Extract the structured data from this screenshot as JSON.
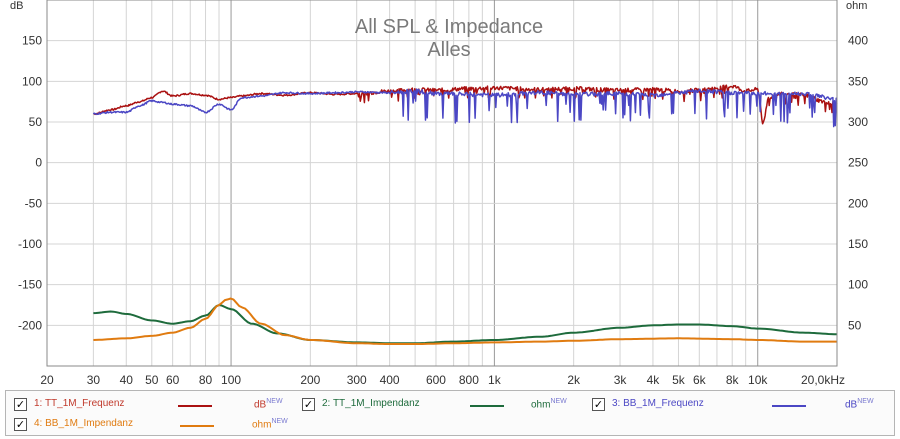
{
  "chart_data": {
    "type": "line",
    "title": "All SPL & Impedance",
    "subtitle": "Alles",
    "x_scale": "log",
    "xlim": [
      20,
      20000
    ],
    "x_ticks": [
      20,
      30,
      40,
      50,
      60,
      80,
      100,
      200,
      300,
      400,
      600,
      800,
      1000,
      2000,
      3000,
      4000,
      5000,
      6000,
      8000,
      10000,
      20000
    ],
    "x_tick_labels": [
      "20",
      "30",
      "40",
      "50",
      "60",
      "80",
      "100",
      "200",
      "300",
      "400",
      "600",
      "800",
      "1k",
      "2k",
      "3k",
      "4k",
      "5k",
      "6k",
      "8k",
      "10k",
      "20,0kHz"
    ],
    "left_axis": {
      "unit": "dB",
      "ylim": [
        -250,
        200
      ],
      "ticks": [
        150,
        100,
        50,
        0,
        -50,
        -100,
        -150,
        -200
      ]
    },
    "right_axis": {
      "unit": "ohm",
      "ylim": [
        0,
        450
      ],
      "ticks": [
        400,
        350,
        300,
        250,
        200,
        150,
        100,
        50
      ]
    },
    "grid": true,
    "legend_position": "bottom",
    "series": [
      {
        "name": "1: TT_1M_Frequenz",
        "unit": "dB",
        "color": "#aa1111",
        "axis": "left",
        "x": [
          30,
          35,
          40,
          45,
          50,
          55,
          60,
          70,
          80,
          90,
          100,
          110,
          130,
          160,
          200,
          250,
          300,
          400,
          500,
          600,
          800,
          1000,
          1500,
          2000,
          3000,
          4000,
          5000,
          6000,
          7000,
          8000,
          9000,
          10000,
          10500,
          11000,
          12000,
          15000,
          18000,
          20000
        ],
        "y": [
          60,
          65,
          70,
          75,
          80,
          88,
          82,
          85,
          83,
          78,
          80,
          82,
          85,
          83,
          86,
          84,
          85,
          88,
          90,
          89,
          91,
          92,
          90,
          91,
          89,
          90,
          88,
          89,
          92,
          94,
          88,
          90,
          48,
          80,
          85,
          83,
          75,
          72
        ],
        "noisy_from": 300,
        "noise_depth": 10
      },
      {
        "name": "2: TT_1M_Impendanz",
        "unit": "ohm",
        "color": "#1e6b3c",
        "axis": "right",
        "x": [
          30,
          35,
          40,
          50,
          60,
          70,
          80,
          90,
          100,
          120,
          150,
          200,
          300,
          400,
          500,
          700,
          1000,
          1500,
          2000,
          3000,
          4000,
          5000,
          6000,
          8000,
          10000,
          15000,
          20000
        ],
        "y": [
          65,
          67,
          64,
          56,
          52,
          55,
          62,
          75,
          70,
          52,
          40,
          32,
          29,
          28,
          28,
          30,
          32,
          36,
          41,
          47,
          50,
          51,
          51,
          49,
          46,
          41,
          39
        ],
        "noisy_from": 0,
        "noise_depth": 0
      },
      {
        "name": "3: BB_1M_Frequenz",
        "unit": "dB",
        "color": "#4b47c4",
        "axis": "left",
        "x": [
          30,
          35,
          40,
          45,
          50,
          55,
          60,
          70,
          80,
          90,
          100,
          110,
          130,
          160,
          200,
          250,
          300,
          400,
          500,
          600,
          800,
          1000,
          1500,
          2000,
          3000,
          4000,
          5000,
          6000,
          8000,
          10000,
          15000,
          20000
        ],
        "y": [
          60,
          62,
          62,
          70,
          76,
          74,
          72,
          70,
          62,
          72,
          65,
          80,
          82,
          86,
          85,
          86,
          87,
          86,
          88,
          85,
          84,
          83,
          86,
          84,
          85,
          83,
          86,
          88,
          86,
          85,
          85,
          78
        ],
        "noisy_from": 400,
        "noise_depth": 28
      },
      {
        "name": "4: BB_1M_Impendanz",
        "unit": "ohm",
        "color": "#e07b10",
        "axis": "right",
        "x": [
          30,
          40,
          50,
          60,
          70,
          80,
          90,
          95,
          100,
          110,
          130,
          160,
          200,
          300,
          400,
          500,
          700,
          1000,
          1500,
          2000,
          3000,
          5000,
          8000,
          10000,
          15000,
          20000
        ],
        "y": [
          32,
          34,
          37,
          41,
          47,
          58,
          75,
          81,
          83,
          72,
          52,
          38,
          32,
          28,
          27,
          27,
          28,
          29,
          30,
          31,
          33,
          34,
          33,
          32,
          30,
          30
        ],
        "noisy_from": 0,
        "noise_depth": 0
      }
    ]
  },
  "legend": {
    "items": [
      {
        "label": "1: TT_1M_Frequenz",
        "unit": "dB",
        "new": "NEW",
        "color": "#aa1111",
        "checked": "✓"
      },
      {
        "label": "2: TT_1M_Impendanz",
        "unit": "ohm",
        "new": "NEW",
        "color": "#1e6b3c",
        "checked": "✓"
      },
      {
        "label": "3: BB_1M_Frequenz",
        "unit": "dB",
        "new": "NEW",
        "color": "#4b47c4",
        "checked": "✓"
      },
      {
        "label": "4: BB_1M_Impendanz",
        "unit": "ohm",
        "new": "NEW",
        "color": "#e07b10",
        "checked": "✓"
      }
    ]
  }
}
